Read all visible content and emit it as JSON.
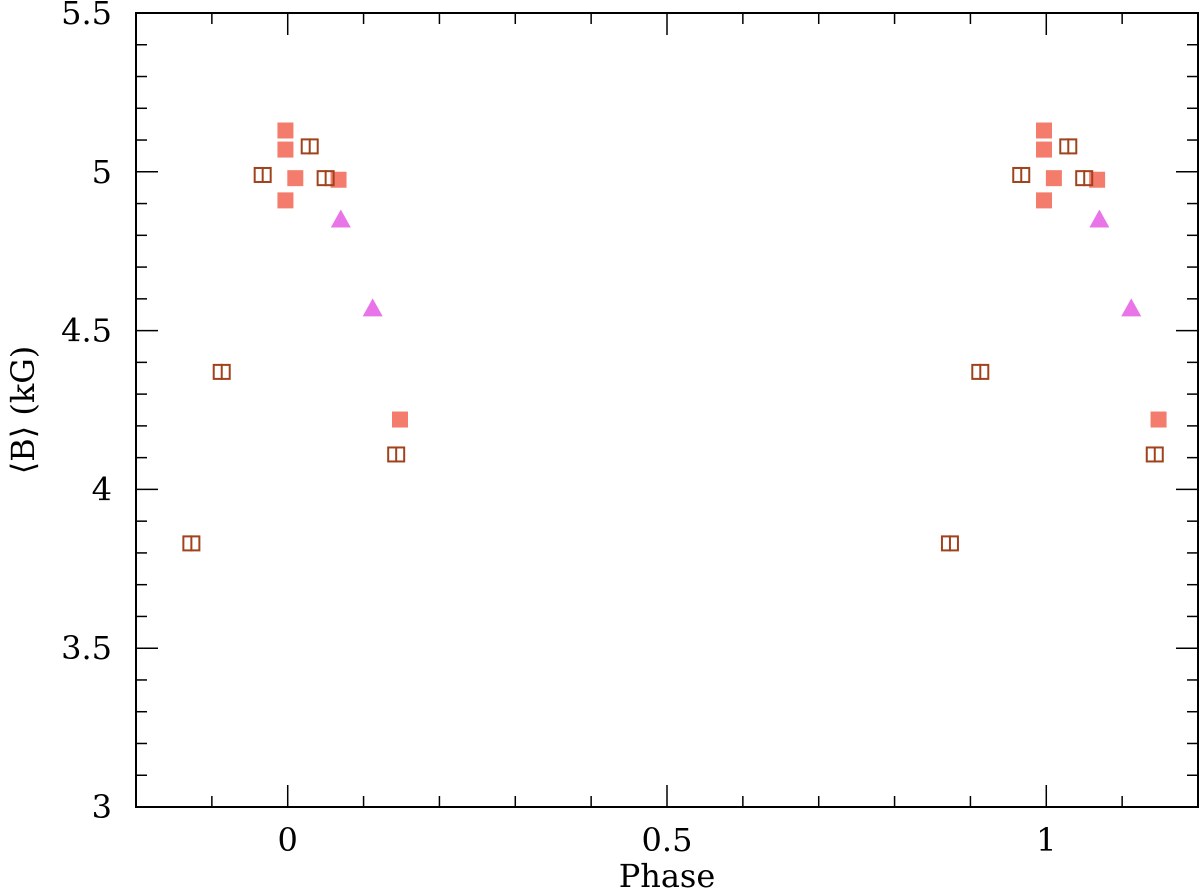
{
  "chart_data": {
    "type": "scatter",
    "xlabel": "Phase",
    "ylabel": "⟨B⟩ (kG)",
    "xlim": [
      -0.2,
      1.2
    ],
    "ylim": [
      3.0,
      5.5
    ],
    "x_ticks": [
      0,
      0.5,
      1
    ],
    "x_tick_labels": [
      "0",
      "0.5",
      "1"
    ],
    "y_ticks": [
      3,
      3.5,
      4,
      4.5,
      5,
      5.5
    ],
    "y_tick_labels": [
      "3",
      "3.5",
      "4",
      "4.5",
      "5",
      "5.5"
    ],
    "x_minor_step": 0.1,
    "y_minor_step": 0.1,
    "grid": false,
    "series": [
      {
        "marker": "filled-square",
        "color": "#f47c6c",
        "x": [
          -0.003,
          -0.003,
          -0.003,
          0.01,
          0.067,
          0.148,
          0.997,
          0.997,
          0.997,
          1.01,
          1.067,
          1.148
        ],
        "y": [
          5.13,
          5.07,
          4.91,
          4.98,
          4.975,
          4.22,
          5.13,
          5.07,
          4.91,
          4.98,
          4.975,
          4.22
        ]
      },
      {
        "marker": "open-square-with-errorbar",
        "color": "#a0421c",
        "x": [
          -0.127,
          -0.087,
          -0.033,
          0.029,
          0.05,
          0.143,
          0.873,
          0.913,
          0.967,
          1.029,
          1.05,
          1.143
        ],
        "y": [
          3.83,
          4.37,
          4.99,
          5.08,
          4.98,
          4.11,
          3.83,
          4.37,
          4.99,
          5.08,
          4.98,
          4.11
        ]
      },
      {
        "marker": "filled-triangle",
        "color": "#e874e8",
        "x": [
          0.07,
          0.112,
          1.07,
          1.112
        ],
        "y": [
          4.85,
          4.57,
          4.85,
          4.57
        ]
      }
    ]
  }
}
